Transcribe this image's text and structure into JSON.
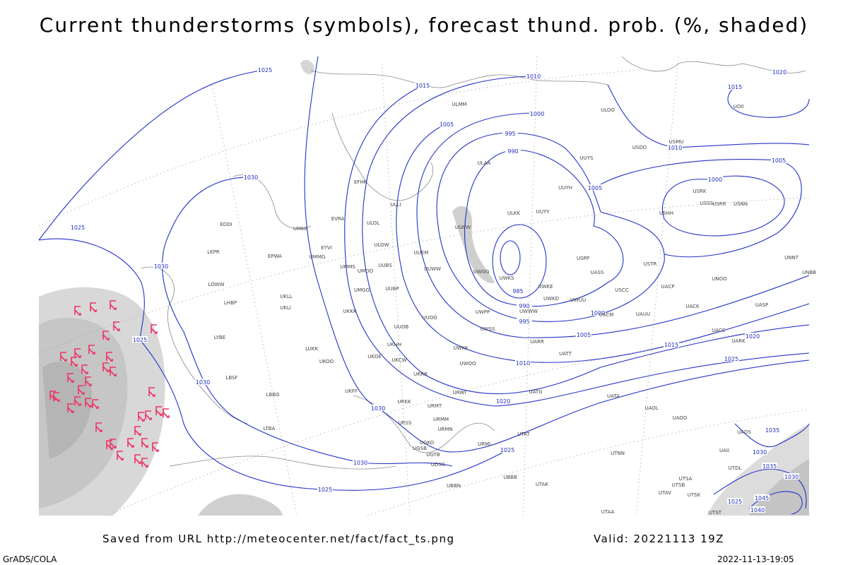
{
  "title": "Current thunderstorms (symbols), forecast thund. prob. (%, shaded)",
  "footer": {
    "source": "Saved from URL http://meteocenter.net/fact/fact_ts.png",
    "valid": "Valid: 20221113 19Z",
    "credit": "GrADS/COLA",
    "timestamp": "2022-11-13-19:05"
  },
  "isobar_labels": [
    "1025",
    "1015",
    "1010",
    "1005",
    "1000",
    "995",
    "990",
    "1030",
    "1025",
    "1030",
    "1025",
    "1030",
    "1030",
    "1030",
    "1025",
    "1025",
    "1020",
    "1010",
    "1005",
    "1000",
    "995",
    "990",
    "985",
    "1015",
    "1020",
    "1025",
    "1005",
    "1010",
    "1005",
    "1000",
    "1015",
    "1020",
    "1035",
    "1030",
    "1035",
    "1030",
    "1025",
    "1040",
    "1045"
  ],
  "stations": [
    "ULMM",
    "ULOO",
    "ULAA",
    "UUYS",
    "EFHK",
    "ULLI",
    "UUYH",
    "ULKK",
    "UUYY",
    "ULOL",
    "EVRA",
    "UMKK",
    "ULWW",
    "EYVI",
    "UUEM",
    "ULOW",
    "UMMG",
    "EPWA",
    "UUBS",
    "UUWW",
    "UMMS",
    "UMOO",
    "UMGG",
    "UUBP",
    "UWPP",
    "UKLL",
    "UKLI",
    "UKKK",
    "UUOO",
    "UUOB",
    "UKHH",
    "UKDE",
    "UKOO",
    "UKCW",
    "URRR",
    "URWI",
    "UKFF",
    "URKK",
    "URMT",
    "URMM",
    "URMN",
    "URSS",
    "UGSB",
    "UATG",
    "UATA",
    "UAOL",
    "UACC",
    "UARR",
    "UATT",
    "UASS",
    "USCC",
    "USTR",
    "UACP",
    "UAUU",
    "USCM",
    "UACK",
    "UNOO",
    "UASP",
    "UARK",
    "USSS",
    "USHH",
    "USRR",
    "USNN",
    "USRK",
    "UNNT",
    "UNBB",
    "USDD",
    "USMU",
    "UOII",
    "UWWW",
    "UWKE",
    "UWKD",
    "UWUU",
    "USPP",
    "UWKS",
    "UWGG",
    "UWSS",
    "UWKK",
    "UWOO",
    "UTAT",
    "UGTB",
    "UDSG",
    "UBBB",
    "UBBN",
    "UTAK",
    "UGKO",
    "URML",
    "UTNN",
    "UTSA",
    "UTSB",
    "UTAV",
    "UTSK",
    "UTAA",
    "UTST",
    "UADS",
    "UAII",
    "UTDL",
    "EDDI",
    "LKPR",
    "LOWW",
    "LHBP",
    "LYBE",
    "LBSF",
    "LBBG",
    "LTBA",
    "LUKK",
    "UAOO"
  ]
}
